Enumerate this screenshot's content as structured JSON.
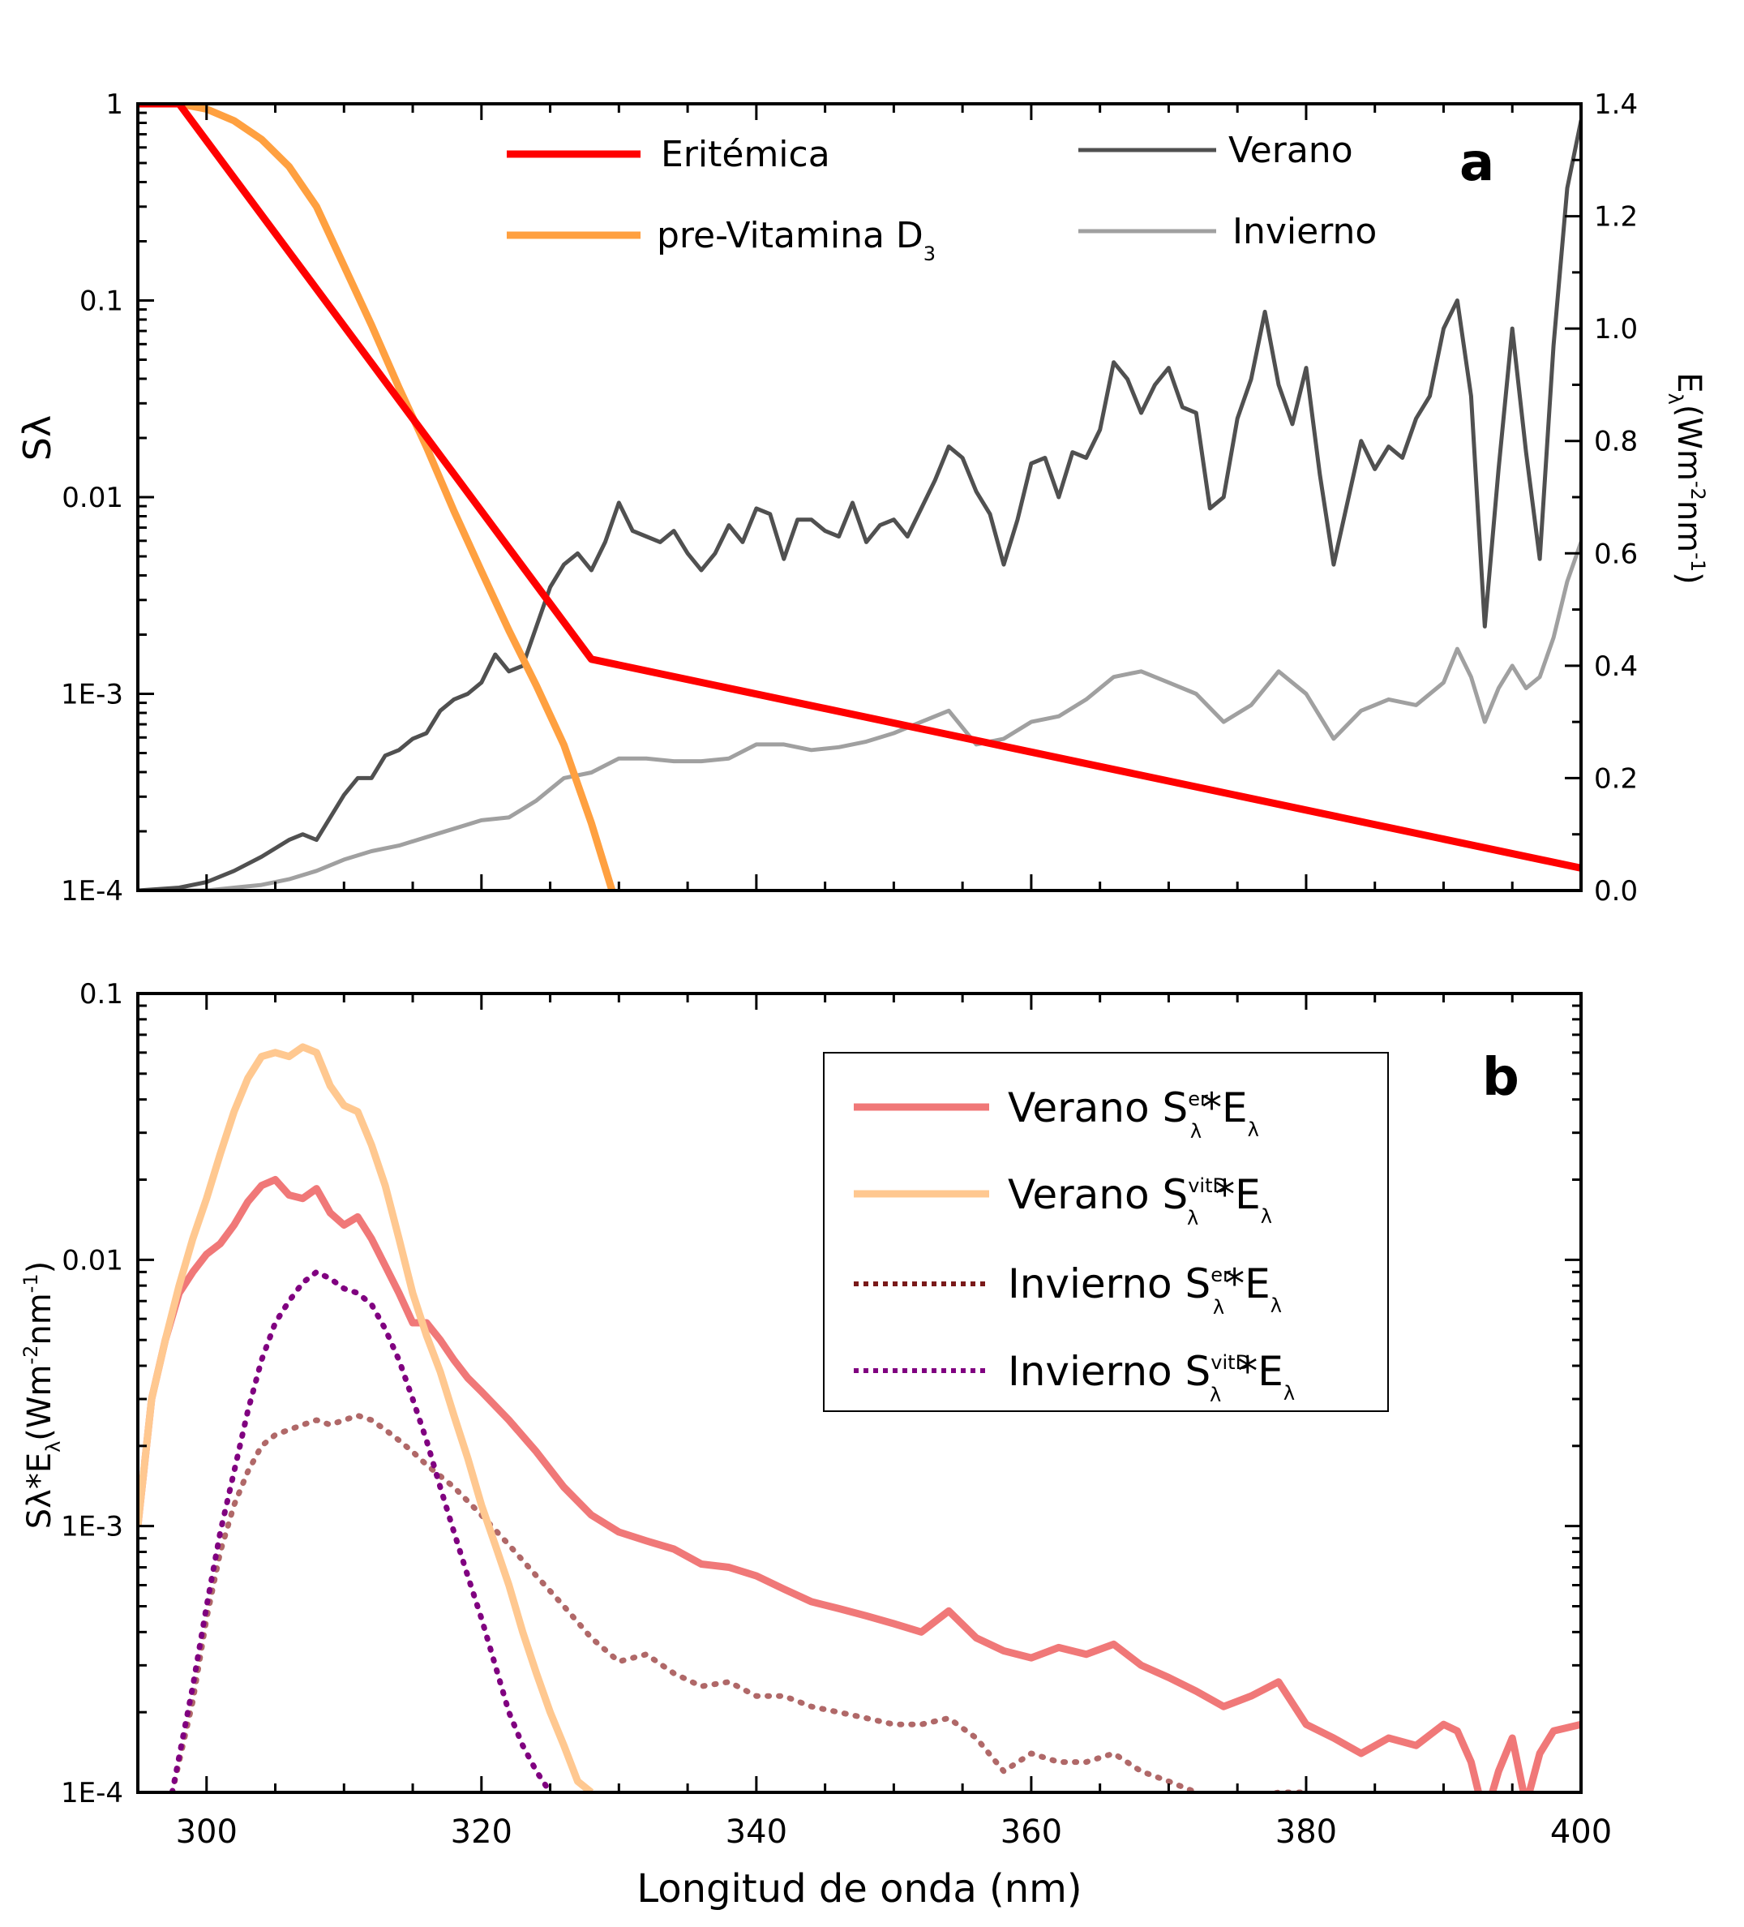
{
  "chart_data": [
    {
      "type": "line",
      "panel_label": "a",
      "xlim": [
        295,
        400
      ],
      "xticks": [
        300,
        320,
        340,
        360,
        380,
        400
      ],
      "ylabel": "Sλ",
      "ylim": [
        0.0001,
        1
      ],
      "yscale": "log",
      "yticks": [
        {
          "value": 1,
          "label": "1"
        },
        {
          "value": 0.1,
          "label": "0.1"
        },
        {
          "value": 0.01,
          "label": "0.01"
        },
        {
          "value": 0.001,
          "label": "1E-3"
        },
        {
          "value": 0.0001,
          "label": "1E-4"
        }
      ],
      "y2label_main": "E",
      "y2label_sub": "λ",
      "y2label_rest": "(Wm",
      "y2label_exp1": "-2",
      "y2label_mid": "nm",
      "y2label_exp2": "-1",
      "y2label_end": ")",
      "y2lim": [
        0,
        1.4
      ],
      "y2ticks": [
        "0.0",
        "0.2",
        "0.4",
        "0.6",
        "0.8",
        "1.0",
        "1.2",
        "1.4"
      ],
      "legend": [
        {
          "name": "Eritémica",
          "color": "#ff0000"
        },
        {
          "name_main": "pre-Vitamina D",
          "name_sub": "3",
          "color": "#ffa040"
        },
        {
          "name": "Verano",
          "color": "#505050"
        },
        {
          "name": "Invierno",
          "color": "#a0a0a0"
        }
      ],
      "series": [
        {
          "key": "eritemica",
          "axis": "left",
          "color": "#ff0000",
          "x": [
            295,
            298,
            328,
            400
          ],
          "y": [
            1,
            1,
            0.0015,
            0.00013
          ]
        },
        {
          "key": "vitd",
          "axis": "left",
          "color": "#ffa040",
          "x": [
            295,
            298,
            300,
            302,
            304,
            306,
            308,
            310,
            312,
            314,
            316,
            318,
            320,
            322,
            324,
            326,
            328,
            329.5
          ],
          "y": [
            1,
            1,
            0.94,
            0.82,
            0.66,
            0.48,
            0.3,
            0.15,
            0.075,
            0.036,
            0.018,
            0.0085,
            0.0042,
            0.0021,
            0.0011,
            0.00055,
            0.00022,
            0.0001
          ]
        },
        {
          "key": "verano",
          "axis": "right",
          "color": "#505050",
          "x": [
            295,
            298,
            300,
            302,
            304,
            306,
            307,
            308,
            309,
            310,
            311,
            312,
            313,
            314,
            315,
            316,
            317,
            318,
            319,
            320,
            321,
            322,
            323,
            324,
            325,
            326,
            327,
            328,
            329,
            330,
            331,
            332,
            333,
            334,
            335,
            336,
            337,
            338,
            339,
            340,
            341,
            342,
            343,
            344,
            345,
            346,
            347,
            348,
            349,
            350,
            351,
            352,
            353,
            354,
            355,
            356,
            357,
            358,
            359,
            360,
            361,
            362,
            363,
            364,
            365,
            366,
            367,
            368,
            369,
            370,
            371,
            372,
            373,
            374,
            375,
            376,
            377,
            378,
            379,
            380,
            381,
            382,
            383,
            384,
            385,
            386,
            387,
            388,
            389,
            390,
            391,
            392,
            393,
            394,
            395,
            396,
            397,
            398,
            399,
            400
          ],
          "y": [
            0.0,
            0.005,
            0.015,
            0.035,
            0.06,
            0.09,
            0.1,
            0.09,
            0.13,
            0.17,
            0.2,
            0.2,
            0.24,
            0.25,
            0.27,
            0.28,
            0.32,
            0.34,
            0.35,
            0.37,
            0.42,
            0.39,
            0.4,
            0.47,
            0.54,
            0.58,
            0.6,
            0.57,
            0.62,
            0.69,
            0.64,
            0.63,
            0.62,
            0.64,
            0.6,
            0.57,
            0.6,
            0.65,
            0.62,
            0.68,
            0.67,
            0.59,
            0.66,
            0.66,
            0.64,
            0.63,
            0.69,
            0.62,
            0.65,
            0.66,
            0.63,
            0.68,
            0.73,
            0.79,
            0.77,
            0.71,
            0.67,
            0.58,
            0.66,
            0.76,
            0.77,
            0.7,
            0.78,
            0.77,
            0.82,
            0.94,
            0.91,
            0.85,
            0.9,
            0.93,
            0.86,
            0.85,
            0.68,
            0.7,
            0.84,
            0.91,
            1.03,
            0.9,
            0.83,
            0.93,
            0.74,
            0.58,
            0.69,
            0.8,
            0.75,
            0.79,
            0.77,
            0.84,
            0.88,
            1.0,
            1.05,
            0.88,
            0.47,
            0.75,
            1.0,
            0.78,
            0.59,
            0.97,
            1.25,
            1.37
          ]
        },
        {
          "key": "invierno",
          "axis": "right",
          "color": "#a0a0a0",
          "x": [
            295,
            298,
            300,
            302,
            304,
            306,
            308,
            310,
            312,
            314,
            316,
            318,
            320,
            322,
            324,
            326,
            328,
            330,
            332,
            334,
            336,
            338,
            340,
            342,
            344,
            346,
            348,
            350,
            352,
            354,
            356,
            358,
            360,
            362,
            364,
            366,
            368,
            370,
            372,
            374,
            376,
            378,
            380,
            382,
            384,
            386,
            388,
            390,
            391,
            392,
            393,
            394,
            395,
            396,
            397,
            398,
            399,
            400
          ],
          "y": [
            0.0,
            0.0,
            0.0,
            0.005,
            0.01,
            0.02,
            0.035,
            0.055,
            0.07,
            0.08,
            0.095,
            0.11,
            0.125,
            0.13,
            0.16,
            0.2,
            0.21,
            0.235,
            0.235,
            0.23,
            0.23,
            0.235,
            0.26,
            0.26,
            0.25,
            0.255,
            0.265,
            0.28,
            0.3,
            0.32,
            0.26,
            0.27,
            0.3,
            0.31,
            0.34,
            0.38,
            0.39,
            0.37,
            0.35,
            0.3,
            0.33,
            0.39,
            0.35,
            0.27,
            0.32,
            0.34,
            0.33,
            0.37,
            0.43,
            0.38,
            0.3,
            0.36,
            0.4,
            0.36,
            0.38,
            0.45,
            0.55,
            0.62
          ]
        }
      ]
    },
    {
      "type": "line",
      "panel_label": "b",
      "xlabel": "Longitud de onda (nm)",
      "xlim": [
        295,
        400
      ],
      "xticks": [
        300,
        320,
        340,
        360,
        380,
        400
      ],
      "ylabel_main": "Sλ*E",
      "ylabel_sub": "λ",
      "ylabel_rest": "(Wm",
      "ylabel_exp1": "-2",
      "ylabel_mid": "nm",
      "ylabel_exp2": "-1",
      "ylabel_end": ")",
      "ylim": [
        0.0001,
        0.1
      ],
      "yscale": "log",
      "yticks": [
        {
          "value": 0.1,
          "label": "0.1"
        },
        {
          "value": 0.01,
          "label": "0.01"
        },
        {
          "value": 0.001,
          "label": "1E-3"
        },
        {
          "value": 0.0001,
          "label": "1E-4"
        }
      ],
      "legend": [
        {
          "prefix": "Verano S",
          "sup": "er",
          "sub": "λ",
          "mid": "*E",
          "sub2": "λ",
          "color": "#f07878",
          "dotted": false
        },
        {
          "prefix": "Verano S",
          "sup": "vitD",
          "sub": "λ",
          "mid": "*E",
          "sub2": "λ",
          "color": "#ffc890",
          "dotted": false
        },
        {
          "prefix": "Invierno S",
          "sup": "er",
          "sub": "λ",
          "mid": "*E",
          "sub2": "λ",
          "color": "#7a1a1a",
          "dotted": true
        },
        {
          "prefix": "Invierno  S",
          "sup": "vitD",
          "sub": "λ",
          "mid": "*E",
          "sub2": "λ",
          "color": "#800080",
          "dotted": true
        }
      ],
      "series": [
        {
          "key": "verano_er",
          "color": "#f07878",
          "dotted": false,
          "x": [
            295,
            296,
            297,
            298,
            299,
            300,
            301,
            302,
            303,
            304,
            305,
            306,
            307,
            308,
            309,
            310,
            311,
            312,
            313,
            314,
            315,
            316,
            317,
            318,
            319,
            320,
            322,
            324,
            326,
            328,
            330,
            332,
            334,
            336,
            338,
            340,
            342,
            344,
            346,
            348,
            350,
            352,
            354,
            356,
            358,
            360,
            362,
            364,
            366,
            368,
            370,
            372,
            374,
            376,
            378,
            380,
            382,
            384,
            386,
            388,
            390,
            391,
            392,
            393,
            394,
            395,
            396,
            397,
            398,
            400
          ],
          "y": [
            0.001,
            0.003,
            0.005,
            0.0075,
            0.009,
            0.0105,
            0.0115,
            0.0135,
            0.0165,
            0.019,
            0.02,
            0.0175,
            0.017,
            0.0185,
            0.015,
            0.0135,
            0.0145,
            0.012,
            0.0095,
            0.0075,
            0.0058,
            0.0058,
            0.005,
            0.0042,
            0.0036,
            0.0032,
            0.0025,
            0.0019,
            0.0014,
            0.0011,
            0.00095,
            0.00088,
            0.00082,
            0.00072,
            0.0007,
            0.00065,
            0.00058,
            0.00052,
            0.00049,
            0.00046,
            0.00043,
            0.0004,
            0.00048,
            0.00038,
            0.00034,
            0.00032,
            0.00035,
            0.00033,
            0.00036,
            0.0003,
            0.00027,
            0.00024,
            0.00021,
            0.00023,
            0.00026,
            0.00018,
            0.00016,
            0.00014,
            0.00016,
            0.00015,
            0.00018,
            0.00017,
            0.00013,
            8e-05,
            0.00012,
            0.00016,
            9e-05,
            0.00014,
            0.00017,
            0.00018
          ]
        },
        {
          "key": "verano_vitd",
          "color": "#ffc890",
          "dotted": false,
          "x": [
            295,
            296,
            297,
            298,
            299,
            300,
            301,
            302,
            303,
            304,
            305,
            306,
            307,
            308,
            309,
            310,
            311,
            312,
            313,
            314,
            315,
            316,
            317,
            318,
            319,
            320,
            321,
            322,
            323,
            324,
            325,
            326,
            327,
            328
          ],
          "y": [
            0.001,
            0.003,
            0.005,
            0.008,
            0.012,
            0.017,
            0.025,
            0.036,
            0.048,
            0.058,
            0.06,
            0.058,
            0.063,
            0.06,
            0.045,
            0.038,
            0.036,
            0.027,
            0.019,
            0.012,
            0.0075,
            0.0052,
            0.0038,
            0.0026,
            0.0018,
            0.0012,
            0.00085,
            0.0006,
            0.0004,
            0.00028,
            0.0002,
            0.00015,
            0.00011,
            0.0001
          ]
        },
        {
          "key": "invierno_er",
          "color": "#b06868",
          "dotted": true,
          "x": [
            297.5,
            299,
            300,
            301,
            302,
            303,
            304,
            305,
            306,
            307,
            308,
            309,
            310,
            311,
            312,
            313,
            314,
            315,
            316,
            318,
            320,
            322,
            324,
            326,
            328,
            330,
            332,
            334,
            336,
            338,
            340,
            342,
            344,
            346,
            348,
            350,
            352,
            354,
            356,
            358,
            360,
            362,
            364,
            366,
            368,
            370,
            372,
            374,
            376,
            378,
            380
          ],
          "y": [
            0.0001,
            0.00022,
            0.00045,
            0.0008,
            0.0012,
            0.0016,
            0.002,
            0.0022,
            0.0023,
            0.0024,
            0.0025,
            0.0024,
            0.0025,
            0.0026,
            0.0025,
            0.0023,
            0.0021,
            0.0019,
            0.0017,
            0.0014,
            0.0011,
            0.00085,
            0.00065,
            0.0005,
            0.00038,
            0.00031,
            0.00033,
            0.00028,
            0.00025,
            0.00026,
            0.00023,
            0.00023,
            0.00021,
            0.0002,
            0.00019,
            0.00018,
            0.00018,
            0.00019,
            0.00016,
            0.00012,
            0.00014,
            0.00013,
            0.00013,
            0.00014,
            0.00012,
            0.00011,
            0.0001,
            9e-05,
            9.5e-05,
            0.0001,
            0.0001
          ]
        },
        {
          "key": "invierno_vitd",
          "color": "#800080",
          "dotted": true,
          "x": [
            297.5,
            299,
            300,
            301,
            302,
            303,
            304,
            305,
            306,
            307,
            308,
            309,
            310,
            311,
            312,
            313,
            314,
            315,
            316,
            317,
            318,
            319,
            320,
            321,
            322,
            323,
            324,
            325
          ],
          "y": [
            0.0001,
            0.00025,
            0.0005,
            0.00095,
            0.0016,
            0.0027,
            0.0042,
            0.0058,
            0.007,
            0.0082,
            0.009,
            0.0085,
            0.0078,
            0.0075,
            0.0068,
            0.0055,
            0.0042,
            0.003,
            0.0021,
            0.0014,
            0.00095,
            0.00065,
            0.00045,
            0.0003,
            0.0002,
            0.00015,
            0.00012,
            0.0001
          ]
        }
      ]
    }
  ]
}
